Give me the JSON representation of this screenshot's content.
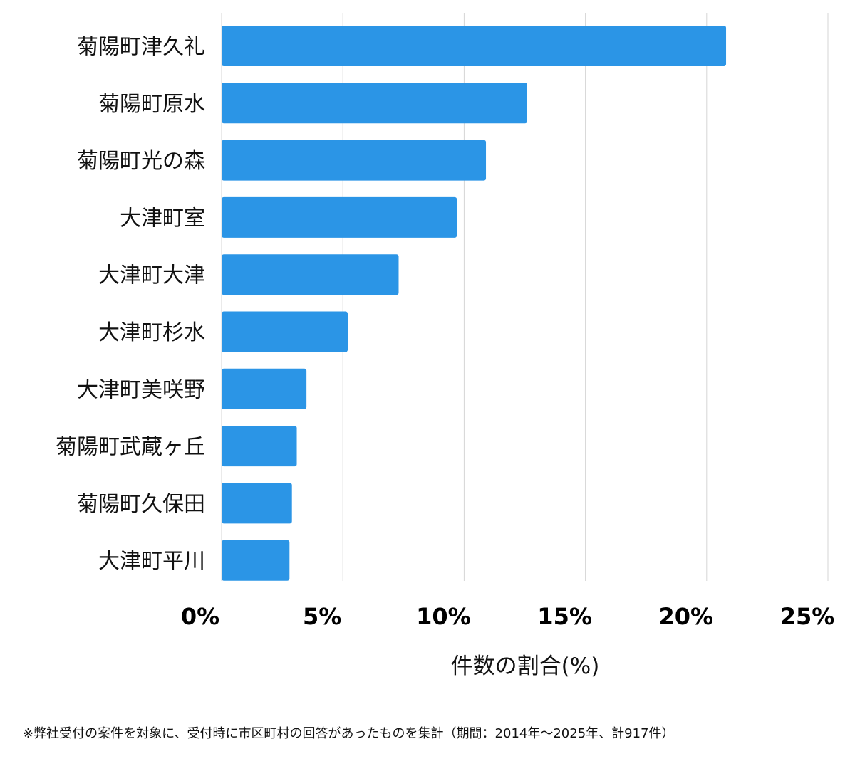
{
  "chart_data": {
    "type": "bar",
    "orientation": "horizontal",
    "categories": [
      "菊陽町津久礼",
      "菊陽町原水",
      "菊陽町光の森",
      "大津町室",
      "大津町大津",
      "大津町杉水",
      "大津町美咲野",
      "菊陽町武蔵ヶ丘",
      "菊陽町久保田",
      "大津町平川"
    ],
    "values": [
      20.8,
      12.6,
      10.9,
      9.7,
      7.3,
      5.2,
      3.5,
      3.1,
      2.9,
      2.8
    ],
    "xlim": [
      0,
      25
    ],
    "xticks": [
      0,
      5,
      10,
      15,
      20,
      25
    ],
    "xtick_labels": [
      "0%",
      "5%",
      "10%",
      "15%",
      "20%",
      "25%"
    ],
    "xlabel": "件数の割合(%)",
    "ylabel": "",
    "title": "",
    "grid": "vertical",
    "bar_color": "#2b95e6"
  },
  "footnote": "※弊社受付の案件を対象に、受付時に市区町村の回答があったものを集計（期間：2014年～2025年、計917件）"
}
